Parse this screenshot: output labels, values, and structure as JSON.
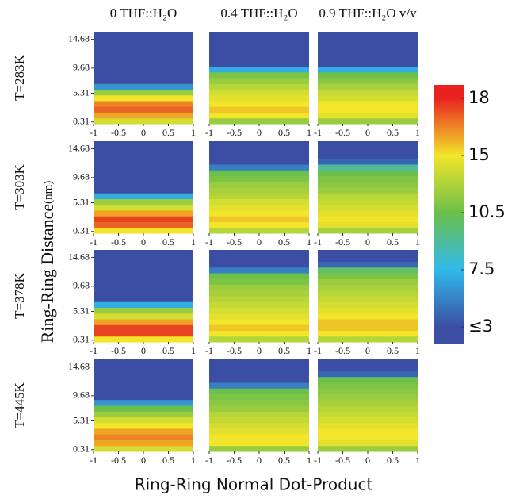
{
  "chart_data": {
    "type": "heatmap-grid",
    "column_titles": [
      "0 THF::H₂O",
      "0.4 THF::H₂O",
      "0.9 THF::H₂O v/v"
    ],
    "row_titles": [
      "T=283K",
      "T=303K",
      "T=378K",
      "T=445K"
    ],
    "ylabel": "Ring-Ring Distance",
    "ylabel_unit": "(nm)",
    "xlabel": "Ring-Ring Normal Dot-Product",
    "xlim": [
      -1,
      1
    ],
    "xticks": [
      -1,
      -0.5,
      0,
      0.5,
      1
    ],
    "ylim": [
      0,
      16
    ],
    "yticks": [
      0.31,
      5.31,
      9.68,
      14.68
    ],
    "ybins": [
      0,
      1,
      2,
      3,
      4,
      5,
      6,
      7,
      8,
      9,
      10,
      11,
      12,
      13,
      14,
      15,
      16
    ],
    "colorbar": {
      "ticks": [
        18,
        15,
        10.5,
        7.5,
        {
          "value": 3,
          "label": "≤3"
        }
      ],
      "colors": [
        "#e8231f",
        "#f2e52a",
        "#6cc04a",
        "#31b9ea",
        "#3b4ea3"
      ]
    },
    "panels": [
      [
        [
          14,
          16,
          17,
          16.5,
          15,
          12,
          6,
          2,
          2,
          2,
          2,
          2,
          2,
          2,
          2,
          2
        ],
        [
          12,
          15,
          15.5,
          15,
          14.5,
          14,
          13,
          12,
          11,
          7,
          2,
          2,
          2,
          2,
          2,
          2
        ],
        [
          12,
          14.5,
          15,
          15,
          14,
          13.5,
          12.5,
          11.5,
          10.5,
          7,
          2,
          2,
          2,
          2,
          2,
          2
        ]
      ],
      [
        [
          15,
          17,
          17.5,
          16,
          14,
          12,
          7,
          2,
          2,
          2,
          2,
          2,
          2,
          2,
          2,
          2
        ],
        [
          13,
          15,
          15.5,
          15,
          14.5,
          14,
          13,
          12.5,
          12,
          11,
          10.5,
          5,
          2,
          2,
          2,
          2
        ],
        [
          12.5,
          14.5,
          15,
          14.5,
          14,
          13.5,
          13,
          12,
          11.5,
          11,
          10.5,
          9,
          4,
          2,
          2,
          2
        ]
      ],
      [
        [
          15,
          17.5,
          17.5,
          16,
          14,
          12,
          7,
          2,
          2,
          2,
          2,
          2,
          2,
          2,
          2,
          2
        ],
        [
          13,
          15,
          15.5,
          15,
          14.5,
          14,
          13.5,
          13,
          12.5,
          12,
          11,
          10.5,
          5,
          2,
          2,
          2
        ],
        [
          13,
          15,
          15.5,
          15.5,
          15,
          14.5,
          14,
          13.5,
          13,
          12.5,
          12,
          11,
          10,
          4,
          2,
          2
        ]
      ],
      [
        [
          14,
          16,
          16.5,
          16,
          15,
          14,
          12,
          10.5,
          6,
          2,
          2,
          2,
          2,
          2,
          2,
          2
        ],
        [
          12,
          15,
          15,
          14.5,
          14,
          13.5,
          13,
          12,
          11.5,
          11,
          10.5,
          5,
          2,
          2,
          2,
          2
        ],
        [
          12,
          14.5,
          15,
          15,
          14.5,
          14,
          13.5,
          13,
          12.5,
          12,
          11.5,
          11,
          10.5,
          4,
          2,
          2
        ]
      ]
    ]
  }
}
